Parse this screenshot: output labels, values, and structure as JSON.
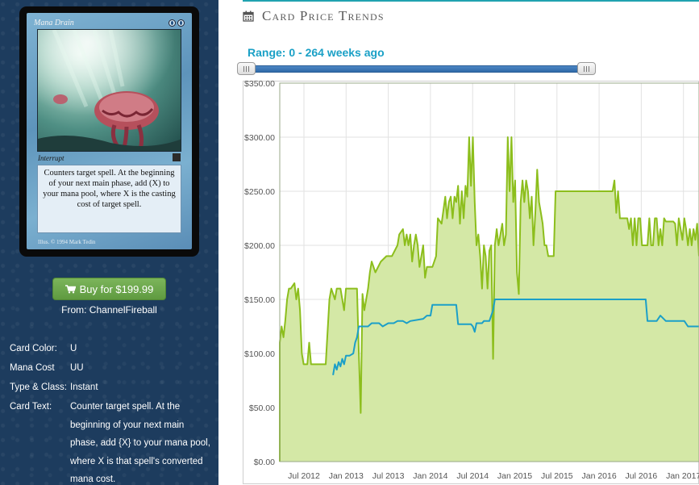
{
  "card": {
    "name": "Mana Drain",
    "type_line": "Interrupt",
    "rules_text": "Counters target spell.  At the beginning of your next main phase, add (X) to your mana pool, where X is the casting cost of target spell.",
    "credits": "Illus. © 1994 Mark Tedin"
  },
  "buy": {
    "label": "Buy for $199.99",
    "from": "From: ChannelFireball"
  },
  "attributes": [
    {
      "label": "Card Color:",
      "value": "U"
    },
    {
      "label": "Mana Cost",
      "value": "UU"
    },
    {
      "label": "Type & Class:",
      "value": "Instant"
    },
    {
      "label": "Card Text:",
      "value": "Counter target spell. At the beginning of your next main phase, add {X} to your mana pool, where X is that spell's converted mana cost."
    }
  ],
  "section": {
    "title": "Card Price Trends",
    "icon": "calendar-icon"
  },
  "range": {
    "label": "Range: 0 - 264 weeks ago",
    "min_weeks": 0,
    "max_weeks": 264
  },
  "colors": {
    "accent": "#1aa0c6",
    "buy_green": "#6aa84f",
    "series_green": "#8cbe1c",
    "series_blue": "#1b9fc8",
    "area_fill": "#d4e8a6"
  },
  "chart_data": {
    "type": "line",
    "title": "",
    "ylim": [
      0,
      350
    ],
    "yticks": [
      "$0.00",
      "$50.00",
      "$100.00",
      "$150.00",
      "$200.00",
      "$250.00",
      "$300.00",
      "$350.00"
    ],
    "xticks": [
      "Jul 2012",
      "Jan 2013",
      "Jul 2013",
      "Jan 2014",
      "Jul 2014",
      "Jan 2015",
      "Jul 2015",
      "Jan 2016",
      "Jul 2016",
      "Jan 2017"
    ],
    "grid": true,
    "series": [
      {
        "values": [
          [
            0,
            0
          ],
          [
            0,
            110
          ],
          [
            1,
            125
          ],
          [
            2,
            115
          ],
          [
            3,
            130
          ],
          [
            4,
            150
          ],
          [
            5,
            160
          ],
          [
            6,
            160
          ],
          [
            8,
            165
          ],
          [
            9,
            150
          ],
          [
            10,
            160
          ],
          [
            11,
            140
          ],
          [
            12,
            100
          ],
          [
            13,
            90
          ],
          [
            15,
            90
          ],
          [
            16,
            110
          ],
          [
            17,
            90
          ],
          [
            19,
            90
          ],
          [
            22,
            90
          ],
          [
            25,
            90
          ],
          [
            27,
            150
          ],
          [
            28,
            160
          ],
          [
            30,
            150
          ],
          [
            31,
            160
          ],
          [
            33,
            160
          ],
          [
            35,
            140
          ],
          [
            36,
            160
          ],
          [
            39,
            160
          ],
          [
            42,
            160
          ],
          [
            43,
            100
          ],
          [
            44,
            45
          ],
          [
            45,
            155
          ],
          [
            46,
            140
          ],
          [
            48,
            160
          ],
          [
            49,
            175
          ],
          [
            50,
            185
          ],
          [
            52,
            175
          ],
          [
            55,
            185
          ],
          [
            58,
            190
          ],
          [
            61,
            190
          ],
          [
            64,
            200
          ],
          [
            65,
            210
          ],
          [
            67,
            215
          ],
          [
            68,
            200
          ],
          [
            69,
            210
          ],
          [
            70,
            200
          ],
          [
            71,
            210
          ],
          [
            72,
            185
          ],
          [
            73,
            200
          ],
          [
            74,
            210
          ],
          [
            75,
            200
          ],
          [
            76,
            180
          ],
          [
            78,
            200
          ],
          [
            79,
            170
          ],
          [
            80,
            180
          ],
          [
            81,
            180
          ],
          [
            83,
            180
          ],
          [
            85,
            190
          ],
          [
            86,
            225
          ],
          [
            88,
            220
          ],
          [
            90,
            245
          ],
          [
            91,
            225
          ],
          [
            92,
            240
          ],
          [
            93,
            245
          ],
          [
            94,
            225
          ],
          [
            95,
            245
          ],
          [
            96,
            240
          ],
          [
            97,
            255
          ],
          [
            98,
            220
          ],
          [
            99,
            250
          ],
          [
            100,
            225
          ],
          [
            101,
            255
          ],
          [
            102,
            245
          ],
          [
            103,
            300
          ],
          [
            104,
            255
          ],
          [
            105,
            300
          ],
          [
            106,
            240
          ],
          [
            107,
            200
          ],
          [
            108,
            210
          ],
          [
            109,
            190
          ],
          [
            110,
            160
          ],
          [
            111,
            200
          ],
          [
            112,
            190
          ],
          [
            113,
            160
          ],
          [
            114,
            195
          ],
          [
            115,
            200
          ],
          [
            116,
            95
          ],
          [
            117,
            200
          ],
          [
            118,
            215
          ],
          [
            119,
            200
          ],
          [
            120,
            210
          ],
          [
            121,
            220
          ],
          [
            122,
            200
          ],
          [
            123,
            210
          ],
          [
            124,
            300
          ],
          [
            125,
            250
          ],
          [
            126,
            300
          ],
          [
            127,
            240
          ],
          [
            128,
            260
          ],
          [
            129,
            175
          ],
          [
            130,
            155
          ],
          [
            131,
            240
          ],
          [
            132,
            260
          ],
          [
            133,
            240
          ],
          [
            134,
            260
          ],
          [
            135,
            250
          ],
          [
            136,
            225
          ],
          [
            137,
            245
          ],
          [
            138,
            200
          ],
          [
            139,
            230
          ],
          [
            140,
            270
          ],
          [
            141,
            240
          ],
          [
            142,
            230
          ],
          [
            143,
            220
          ],
          [
            144,
            200
          ],
          [
            145,
            200
          ],
          [
            146,
            190
          ],
          [
            147,
            190
          ],
          [
            149,
            190
          ],
          [
            150,
            250
          ],
          [
            152,
            250
          ],
          [
            155,
            250
          ],
          [
            160,
            250
          ],
          [
            165,
            250
          ],
          [
            170,
            250
          ],
          [
            175,
            250
          ],
          [
            178,
            250
          ],
          [
            181,
            250
          ],
          [
            182,
            260
          ],
          [
            183,
            230
          ],
          [
            184,
            250
          ],
          [
            185,
            225
          ],
          [
            187,
            225
          ],
          [
            189,
            225
          ],
          [
            190,
            215
          ],
          [
            191,
            225
          ],
          [
            192,
            200
          ],
          [
            193,
            225
          ],
          [
            194,
            200
          ],
          [
            195,
            225
          ],
          [
            196,
            225
          ],
          [
            197,
            200
          ],
          [
            198,
            200
          ],
          [
            200,
            200
          ],
          [
            201,
            225
          ],
          [
            202,
            200
          ],
          [
            203,
            200
          ],
          [
            204,
            225
          ],
          [
            205,
            225
          ],
          [
            206,
            200
          ],
          [
            207,
            215
          ],
          [
            208,
            200
          ],
          [
            209,
            225
          ],
          [
            210,
            222
          ],
          [
            212,
            222
          ],
          [
            214,
            222
          ],
          [
            215,
            220
          ],
          [
            216,
            200
          ],
          [
            217,
            225
          ],
          [
            218,
            215
          ],
          [
            219,
            205
          ],
          [
            220,
            225
          ],
          [
            221,
            215
          ],
          [
            222,
            200
          ],
          [
            223,
            215
          ],
          [
            224,
            200
          ],
          [
            225,
            215
          ],
          [
            226,
            205
          ],
          [
            227,
            220
          ],
          [
            228,
            190
          ]
        ]
      },
      {
        "values": [
          [
            29,
            80
          ],
          [
            30,
            90
          ],
          [
            31,
            85
          ],
          [
            32,
            92
          ],
          [
            33,
            88
          ],
          [
            34,
            95
          ],
          [
            35,
            90
          ],
          [
            36,
            98
          ],
          [
            38,
            98
          ],
          [
            40,
            100
          ],
          [
            41,
            110
          ],
          [
            42,
            115
          ],
          [
            43,
            125
          ],
          [
            48,
            125
          ],
          [
            50,
            128
          ],
          [
            54,
            128
          ],
          [
            56,
            125
          ],
          [
            59,
            128
          ],
          [
            62,
            128
          ],
          [
            64,
            130
          ],
          [
            67,
            130
          ],
          [
            69,
            128
          ],
          [
            71,
            130
          ],
          [
            78,
            132
          ],
          [
            80,
            135
          ],
          [
            82,
            135
          ],
          [
            83,
            145
          ],
          [
            96,
            145
          ],
          [
            97,
            127
          ],
          [
            104,
            127
          ],
          [
            105,
            125
          ],
          [
            106,
            120
          ],
          [
            107,
            128
          ],
          [
            110,
            128
          ],
          [
            111,
            130
          ],
          [
            114,
            130
          ],
          [
            115,
            135
          ],
          [
            116,
            140
          ],
          [
            117,
            150
          ],
          [
            140,
            150
          ],
          [
            160,
            150
          ],
          [
            180,
            150
          ],
          [
            199,
            150
          ],
          [
            200,
            130
          ],
          [
            205,
            130
          ],
          [
            207,
            135
          ],
          [
            210,
            130
          ],
          [
            220,
            130
          ],
          [
            222,
            125
          ],
          [
            228,
            125
          ]
        ]
      }
    ],
    "x_units": "weeks from chart start (approx.)"
  }
}
